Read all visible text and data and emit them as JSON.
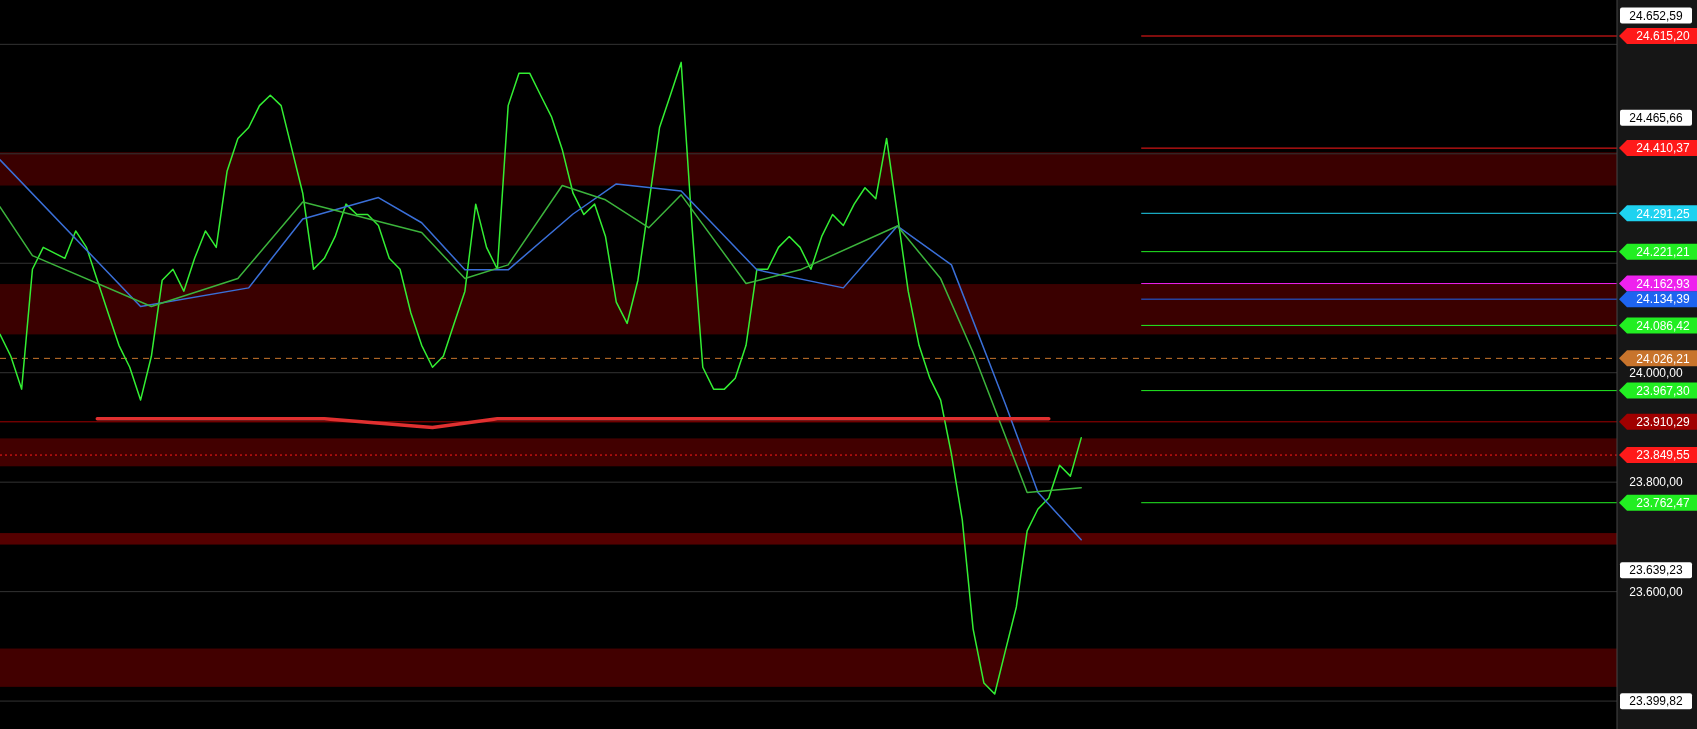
{
  "chart_data": {
    "type": "line",
    "categories": [
      null,
      null,
      null,
      null,
      null,
      null,
      null,
      null,
      null,
      null,
      null,
      null,
      null,
      null,
      null,
      null,
      null,
      null,
      null,
      null,
      null,
      null,
      null,
      null,
      null,
      null,
      null,
      null,
      null,
      null,
      null,
      null,
      null,
      null,
      null,
      null,
      null,
      null,
      null,
      null,
      null,
      null,
      null,
      null,
      null,
      null,
      null,
      null,
      null,
      null,
      null,
      null,
      null,
      null,
      null,
      null,
      null,
      null,
      null,
      null,
      null,
      null,
      null,
      null,
      null,
      null,
      null,
      null,
      null,
      null,
      null,
      null,
      null,
      null,
      null,
      null,
      null,
      null,
      null,
      null,
      null,
      null,
      null,
      null,
      null,
      null,
      null,
      null,
      null,
      null,
      null,
      null,
      null,
      null,
      null,
      null,
      null,
      null,
      null,
      null,
      null,
      null,
      null,
      null,
      null,
      null,
      null,
      null,
      null,
      null,
      null,
      null,
      null,
      null,
      null,
      null,
      null,
      null,
      null,
      null,
      null,
      null,
      null,
      null,
      null,
      null,
      null,
      null,
      null,
      null,
      null,
      null,
      null,
      null,
      null,
      null,
      null,
      null,
      null,
      null,
      null,
      null,
      null,
      null,
      null,
      null,
      null,
      null,
      null,
      null
    ],
    "series": [
      {
        "color": "#33ee33",
        "values": [
          24070,
          24030,
          23970,
          24189,
          24229,
          24219,
          24209,
          24259,
          24229,
          24169,
          24109,
          24050,
          24010,
          23950,
          24030,
          24169,
          24189,
          24149,
          24209,
          24259,
          24229,
          24368,
          24428,
          24448,
          24488,
          24507,
          24488,
          24408,
          24328,
          24189,
          24209,
          24249,
          24308,
          24289,
          24289,
          24269,
          24209,
          24189,
          24109,
          24050,
          24010,
          24030,
          24090,
          24149,
          24308,
          24229,
          24189,
          24488,
          24547,
          24547,
          24507,
          24468,
          24408,
          24328,
          24289,
          24308,
          24249,
          24129,
          24090,
          24169,
          24308,
          24448,
          24507,
          24567,
          24269,
          24010,
          23970,
          23970,
          23990,
          24050,
          24189,
          24189,
          24229,
          24249,
          24229,
          24189,
          24249,
          24289,
          24269,
          24308,
          24338,
          24318,
          24428,
          24289,
          24149,
          24050,
          23990,
          23950,
          23851,
          23731,
          23532,
          23433,
          23413,
          23493,
          23572,
          23711,
          23751,
          23771,
          23831,
          23811,
          23881,
          null,
          null,
          null,
          null,
          null,
          null,
          null,
          null,
          null,
          null,
          null,
          null,
          null,
          null,
          null,
          null,
          null,
          null,
          null,
          null,
          null,
          null,
          null,
          null,
          null,
          null,
          null,
          null,
          null,
          null,
          null,
          null,
          null,
          null,
          null,
          null,
          null,
          null,
          null,
          null,
          null,
          null,
          null,
          null,
          null,
          null,
          null,
          null,
          null
        ]
      },
      {
        "color": "#3a6fd8",
        "values": [
          24389,
          null,
          null,
          null,
          null,
          null,
          null,
          null,
          null,
          null,
          null,
          null,
          null,
          24121,
          null,
          null,
          null,
          null,
          null,
          null,
          null,
          null,
          null,
          24155,
          null,
          null,
          null,
          null,
          24281,
          null,
          null,
          null,
          null,
          null,
          null,
          24320,
          null,
          null,
          null,
          24274,
          null,
          null,
          null,
          24188,
          null,
          null,
          null,
          24188,
          null,
          null,
          null,
          null,
          null,
          24290,
          null,
          null,
          null,
          24345,
          null,
          null,
          null,
          null,
          null,
          24332,
          null,
          null,
          null,
          null,
          null,
          null,
          24188,
          null,
          null,
          null,
          null,
          null,
          null,
          null,
          24155,
          null,
          null,
          null,
          null,
          24268,
          null,
          null,
          null,
          null,
          24197,
          null,
          null,
          null,
          null,
          23942,
          null,
          null,
          23781,
          null,
          null,
          null,
          23695,
          null,
          null,
          null,
          null,
          null,
          null,
          null,
          null,
          null,
          null,
          null,
          null,
          null,
          null,
          null,
          null,
          null,
          null,
          null,
          null,
          null,
          null,
          null,
          null,
          null,
          null,
          null,
          null,
          null,
          null,
          null,
          null,
          null,
          null,
          null,
          null,
          null,
          null,
          null,
          null,
          null,
          null,
          null,
          null,
          null,
          null,
          null,
          null,
          null
        ]
      },
      {
        "color": "#3cb43c",
        "values": [
          24303,
          null,
          null,
          24214,
          null,
          null,
          null,
          null,
          null,
          null,
          null,
          null,
          null,
          null,
          24121,
          null,
          null,
          null,
          null,
          null,
          null,
          null,
          24172,
          null,
          null,
          null,
          null,
          null,
          24312,
          null,
          null,
          null,
          null,
          null,
          null,
          null,
          null,
          null,
          null,
          24256,
          null,
          null,
          null,
          24172,
          null,
          null,
          null,
          24197,
          null,
          null,
          null,
          null,
          24342,
          null,
          null,
          null,
          24316,
          null,
          null,
          null,
          24265,
          null,
          null,
          24325,
          null,
          null,
          null,
          null,
          null,
          24163,
          null,
          null,
          null,
          null,
          24188,
          null,
          null,
          null,
          null,
          null,
          null,
          null,
          null,
          24268,
          null,
          null,
          null,
          24172,
          null,
          null,
          24037,
          null,
          null,
          null,
          null,
          23781,
          null,
          null,
          null,
          null,
          23790,
          null,
          null,
          null,
          null,
          null,
          null,
          null,
          null,
          null,
          null,
          null,
          null,
          null,
          null,
          null,
          null,
          null,
          null,
          null,
          null,
          null,
          null,
          null,
          null,
          null,
          null,
          null,
          null,
          null,
          null,
          null,
          null,
          null,
          null,
          null,
          null,
          null,
          null,
          null,
          null,
          null,
          null,
          null,
          null,
          null,
          null,
          null,
          null,
          null
        ]
      },
      {
        "color": "#e03030",
        "values": [
          null,
          null,
          null,
          null,
          null,
          null,
          null,
          null,
          null,
          23916,
          null,
          null,
          null,
          null,
          null,
          null,
          null,
          null,
          null,
          null,
          null,
          null,
          null,
          null,
          null,
          null,
          null,
          null,
          null,
          null,
          23916,
          null,
          null,
          null,
          null,
          null,
          null,
          null,
          null,
          null,
          23900,
          null,
          null,
          null,
          null,
          null,
          23916,
          null,
          null,
          null,
          null,
          null,
          null,
          null,
          null,
          null,
          null,
          null,
          null,
          null,
          null,
          null,
          null,
          null,
          null,
          null,
          null,
          null,
          null,
          null,
          null,
          null,
          null,
          null,
          null,
          null,
          null,
          null,
          null,
          null,
          null,
          null,
          null,
          null,
          null,
          null,
          null,
          null,
          null,
          null,
          null,
          null,
          null,
          null,
          null,
          null,
          null,
          23916,
          null,
          null,
          null,
          null,
          null,
          null,
          null,
          null,
          null,
          null,
          null,
          null,
          null,
          null,
          null,
          null,
          null,
          null,
          null,
          null,
          null,
          null,
          null,
          null,
          null,
          null,
          null,
          null,
          null,
          null,
          null,
          null,
          null,
          null,
          null,
          null,
          null,
          null,
          null,
          null,
          null,
          null,
          null,
          null,
          null,
          null,
          null,
          null,
          null,
          null,
          null,
          null
        ]
      }
    ],
    "ylim": [
      23349,
      24681
    ],
    "yticks": [
      {
        "value": 24600,
        "label": null
      },
      {
        "value": 24400,
        "label": null
      },
      {
        "value": 24200,
        "label": null
      },
      {
        "value": 24000,
        "label": "24.000,00"
      },
      {
        "value": 23800,
        "label": "23.800,00"
      },
      {
        "value": 23600,
        "label": "23.600,00"
      },
      {
        "value": 23400,
        "label": null
      },
      {
        "value": 24652.59,
        "label": "24.652,59"
      },
      {
        "value": 24465.66,
        "label": "24.465,66"
      },
      {
        "value": 23639.23,
        "label": "23.639,23"
      },
      {
        "value": 23399.82,
        "label": "23.399,82"
      }
    ],
    "grid": "y",
    "bands": [
      {
        "axis": "y",
        "from": 24342,
        "to": 24403,
        "label": null,
        "color": "#3a0000"
      },
      {
        "axis": "y",
        "from": 24070,
        "to": 24162,
        "label": null,
        "color": "#3a0000"
      },
      {
        "axis": "y",
        "from": 23829,
        "to": 23880,
        "label": null,
        "color": "#420000"
      },
      {
        "axis": "y",
        "from": 23686,
        "to": 23707,
        "label": null,
        "color": "#550000"
      },
      {
        "axis": "y",
        "from": 23426,
        "to": 23496,
        "label": null,
        "color": "#420000"
      }
    ],
    "ref_lines": [
      {
        "axis": "y",
        "value": 24615.2,
        "label": "24.615,20",
        "color": "#ff1a1a"
      },
      {
        "axis": "y",
        "value": 24410.37,
        "label": "24.410,37",
        "color": "#ff1a1a"
      },
      {
        "axis": "y",
        "value": 24291.25,
        "label": "24.291,25",
        "color": "#1ed2f0"
      },
      {
        "axis": "y",
        "value": 24221.21,
        "label": "24.221,21",
        "color": "#22ee22"
      },
      {
        "axis": "y",
        "value": 24162.93,
        "label": "24.162,93",
        "color": "#ee22ee"
      },
      {
        "axis": "y",
        "value": 24134.39,
        "label": "24.134,39",
        "color": "#1e64f0"
      },
      {
        "axis": "y",
        "value": 24086.42,
        "label": "24.086,42",
        "color": "#22ee22"
      },
      {
        "axis": "y",
        "value": 24026.21,
        "label": "24.026,21",
        "color": "#c8742c",
        "line_style": "dashed"
      },
      {
        "axis": "y",
        "value": 23967.3,
        "label": "23.967,30",
        "color": "#22ee22"
      },
      {
        "axis": "y",
        "value": 23910.29,
        "label": "23.910,29",
        "color": "#a00000",
        "line_style": "solid"
      },
      {
        "axis": "y",
        "value": 23849.55,
        "label": "23.849,55",
        "color": "#ff1a1a",
        "line_style": "dotted"
      },
      {
        "axis": "y",
        "value": 23762.47,
        "label": "23.762,47",
        "color": "#22ee22"
      }
    ]
  }
}
